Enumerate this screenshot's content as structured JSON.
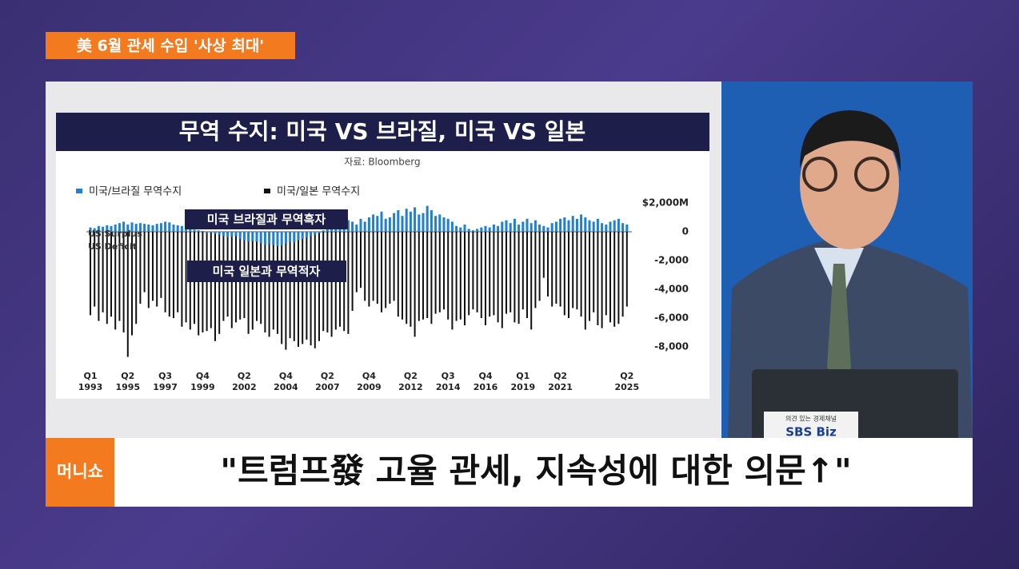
{
  "broadcast": {
    "tag": "美 6월 관세 수입 '사상 최대'",
    "logo": "머니쇼",
    "headline": "\"트럼프發 고율 관세, 지속성에 대한 의문↑\"",
    "monitor_caption": "의견 있는 경제채널",
    "monitor_logo": "SBS Biz"
  },
  "chart_data": {
    "type": "bar",
    "title": "무역 수지: 미국 VS 브라질, 미국 VS 일본",
    "subtitle": "자료: Bloomberg",
    "annotations": [
      "미국 브라질과 무역흑자",
      "미국 일본과 무역적자",
      "US Surplus",
      "US Deficit"
    ],
    "legend": "top-left",
    "categories": [
      "Q1 1993",
      null,
      null,
      null,
      null,
      null,
      null,
      null,
      null,
      "Q2 1995",
      null,
      null,
      null,
      null,
      null,
      null,
      null,
      null,
      "Q3 1997",
      null,
      null,
      null,
      null,
      null,
      null,
      null,
      null,
      "Q4 1999",
      null,
      null,
      null,
      null,
      null,
      null,
      null,
      null,
      null,
      "Q2 2002",
      null,
      null,
      null,
      null,
      null,
      null,
      null,
      null,
      null,
      "Q4 2004",
      null,
      null,
      null,
      null,
      null,
      null,
      null,
      null,
      null,
      "Q2 2007",
      null,
      null,
      null,
      null,
      null,
      null,
      null,
      null,
      null,
      "Q4 2009",
      null,
      null,
      null,
      null,
      null,
      null,
      null,
      null,
      null,
      "Q2 2012",
      null,
      null,
      null,
      null,
      null,
      null,
      null,
      null,
      "Q3 2014",
      null,
      null,
      null,
      null,
      null,
      null,
      null,
      null,
      "Q4 2016",
      null,
      null,
      null,
      null,
      null,
      null,
      null,
      null,
      "Q1 2019",
      null,
      null,
      null,
      null,
      null,
      null,
      null,
      null,
      "Q2 2021",
      null,
      null,
      null,
      null,
      null,
      null,
      null,
      null,
      null,
      null,
      null,
      null,
      null,
      null,
      null,
      "Q2 2025"
    ],
    "series": [
      {
        "name": "미국/일본 무역수지",
        "color": "#111111",
        "values": [
          -5800,
          -5200,
          -6200,
          -5600,
          -6400,
          -5900,
          -6800,
          -6200,
          -7000,
          -8700,
          -7200,
          -6400,
          -5000,
          -4200,
          -5300,
          -4800,
          -5200,
          -4600,
          -5600,
          -5900,
          -6000,
          -5600,
          -6600,
          -6300,
          -6800,
          -6400,
          -7200,
          -7000,
          -6900,
          -6700,
          -7600,
          -7100,
          -6200,
          -5900,
          -6700,
          -6300,
          -6100,
          -6000,
          -7100,
          -6800,
          -6200,
          -6400,
          -7000,
          -7300,
          -6800,
          -7100,
          -7800,
          -8200,
          -7400,
          -7600,
          -8000,
          -7800,
          -7500,
          -7900,
          -8100,
          -7600,
          -6900,
          -7000,
          -7300,
          -6800,
          -6600,
          -6900,
          -7100,
          -5500,
          -4200,
          -3900,
          -4800,
          -5200,
          -4800,
          -5000,
          -5600,
          -5300,
          -5000,
          -4800,
          -5900,
          -6100,
          -6400,
          -6600,
          -7300,
          -6200,
          -6100,
          -6000,
          -6400,
          -5700,
          -5600,
          -5400,
          -6100,
          -6800,
          -6200,
          -6100,
          -6500,
          -5800,
          -5400,
          -5600,
          -6000,
          -6500,
          -5900,
          -5800,
          -6300,
          -6700,
          -5700,
          -5600,
          -6300,
          -6400,
          -5400,
          -6000,
          -6800,
          -5300,
          -4800,
          -3200,
          -4500,
          -5200,
          -5000,
          -5200,
          -5800,
          -6000,
          -5300,
          -5400,
          -5900,
          -6800,
          -6200,
          -5600,
          -6500,
          -6700,
          -5800,
          -6300,
          -6600,
          -6400,
          -5900,
          -5200
        ]
      },
      {
        "name": "미국/브라질 무역수지",
        "color": "#1f7fd4",
        "values": [
          300,
          250,
          400,
          350,
          450,
          400,
          500,
          600,
          700,
          500,
          650,
          550,
          600,
          550,
          500,
          450,
          550,
          600,
          700,
          650,
          500,
          450,
          400,
          350,
          200,
          150,
          100,
          50,
          -100,
          -50,
          -150,
          -200,
          -300,
          -400,
          -350,
          -300,
          -500,
          -600,
          -700,
          -650,
          -700,
          -800,
          -900,
          -850,
          -900,
          -1000,
          -950,
          -800,
          -700,
          -750,
          -600,
          -500,
          -400,
          -300,
          -200,
          -100,
          100,
          200,
          300,
          250,
          400,
          600,
          800,
          700,
          500,
          900,
          700,
          1000,
          1200,
          1100,
          1400,
          900,
          1000,
          1300,
          1500,
          1100,
          1600,
          1400,
          1700,
          1200,
          1300,
          1800,
          1500,
          1100,
          1200,
          1000,
          900,
          700,
          400,
          300,
          500,
          200,
          100,
          200,
          300,
          400,
          300,
          500,
          400,
          700,
          800,
          600,
          900,
          500,
          700,
          900,
          600,
          800,
          500,
          400,
          300,
          600,
          700,
          900,
          1000,
          800,
          1100,
          900,
          1200,
          1000,
          800,
          700,
          900,
          600,
          500,
          700,
          800,
          900,
          600,
          500
        ]
      }
    ],
    "ylim": [
      -9000,
      2500
    ],
    "yticks": [
      {
        "value": 2000,
        "label": "$2,000M"
      },
      0,
      {
        "value": -2000,
        "label": "-2,000"
      },
      {
        "value": -4000,
        "label": "-4,000"
      },
      {
        "value": -6000,
        "label": "-6,000"
      },
      {
        "value": -8000,
        "label": "-8,000"
      }
    ],
    "grid": false
  }
}
